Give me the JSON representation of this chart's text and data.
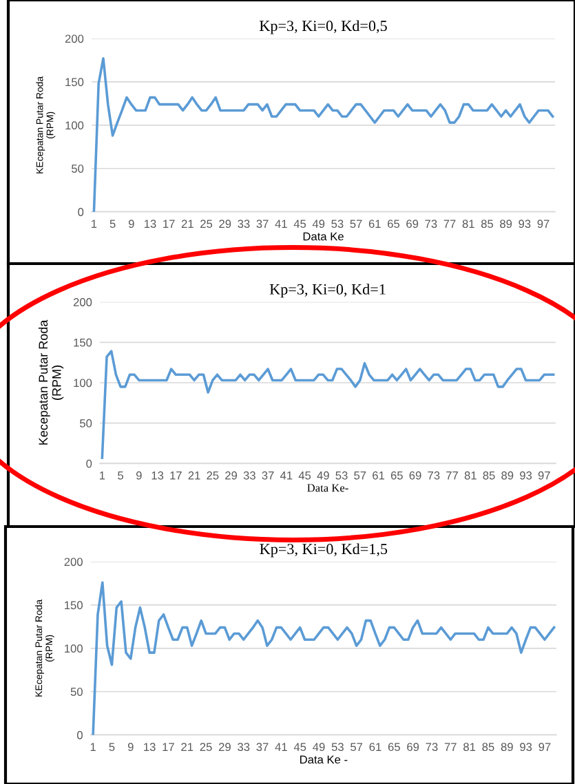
{
  "chart_data": [
    {
      "type": "line",
      "title": "Kp=3, Ki=0, Kd=0,5",
      "xlabel": "Data Ke",
      "ylabel": "KEcepatan Putar Roda\n(RPM)",
      "ylim": [
        0,
        200
      ],
      "yticks": [
        0,
        50,
        100,
        150,
        200
      ],
      "grid": "y",
      "line_style": "solid",
      "categories": [
        "1",
        null,
        null,
        null,
        "5",
        null,
        null,
        null,
        "9",
        null,
        null,
        null,
        "13",
        null,
        null,
        null,
        "17",
        null,
        null,
        null,
        "21",
        null,
        null,
        null,
        "25",
        null,
        null,
        null,
        "29",
        null,
        null,
        null,
        "33",
        null,
        null,
        null,
        "37",
        null,
        null,
        null,
        "41",
        null,
        null,
        null,
        "45",
        null,
        null,
        null,
        "49",
        null,
        null,
        null,
        "53",
        null,
        null,
        null,
        "57",
        null,
        null,
        null,
        "61",
        null,
        null,
        null,
        "65",
        null,
        null,
        null,
        "69",
        null,
        null,
        null,
        "73",
        null,
        null,
        null,
        "77",
        null,
        null,
        null,
        "81",
        null,
        null,
        null,
        "85",
        null,
        null,
        null,
        "89",
        null,
        null,
        null,
        "93",
        null,
        null,
        null,
        "97",
        null,
        null
      ],
      "series": [
        {
          "color": "#5b9bd5",
          "values": [
            0,
            148,
            177,
            124,
            88,
            103,
            117,
            132,
            124,
            117,
            117,
            117,
            132,
            132,
            124,
            124,
            124,
            124,
            124,
            117,
            124,
            132,
            124,
            117,
            117,
            124,
            132,
            117,
            117,
            117,
            117,
            117,
            117,
            124,
            124,
            124,
            117,
            124,
            110,
            110,
            117,
            124,
            124,
            124,
            117,
            117,
            117,
            117,
            110,
            117,
            124,
            117,
            117,
            110,
            110,
            117,
            124,
            124,
            117,
            110,
            103,
            110,
            117,
            117,
            117,
            110,
            117,
            124,
            117,
            117,
            117,
            117,
            110,
            117,
            124,
            117,
            103,
            103,
            110,
            124,
            124,
            117,
            117,
            117,
            117,
            124,
            117,
            110,
            117,
            110,
            117,
            124,
            110,
            103,
            110,
            117,
            117,
            117,
            110
          ]
        }
      ]
    },
    {
      "type": "line",
      "title": "Kp=3, Ki=0, Kd=1",
      "xlabel": "Data Ke-",
      "ylabel": "Kecepatan Putar Roda\n(RPM)",
      "ylim": [
        0,
        200
      ],
      "yticks": [
        0,
        50,
        100,
        150,
        200
      ],
      "grid": "y",
      "line_style": "solid",
      "categories": [
        "1",
        null,
        null,
        null,
        "5",
        null,
        null,
        null,
        "9",
        null,
        null,
        null,
        "13",
        null,
        null,
        null,
        "17",
        null,
        null,
        null,
        "21",
        null,
        null,
        null,
        "25",
        null,
        null,
        null,
        "29",
        null,
        null,
        null,
        "33",
        null,
        null,
        null,
        "37",
        null,
        null,
        null,
        "41",
        null,
        null,
        null,
        "45",
        null,
        null,
        null,
        "49",
        null,
        null,
        null,
        "53",
        null,
        null,
        null,
        "57",
        null,
        null,
        null,
        "61",
        null,
        null,
        null,
        "65",
        null,
        null,
        null,
        "69",
        null,
        null,
        null,
        "73",
        null,
        null,
        null,
        "77",
        null,
        null,
        null,
        "81",
        null,
        null,
        null,
        "85",
        null,
        null,
        null,
        "89",
        null,
        null,
        null,
        "93",
        null,
        null,
        null,
        "97",
        null,
        null
      ],
      "series": [
        {
          "color": "#5b9bd5",
          "values": [
            7,
            132,
            139,
            110,
            95,
            95,
            110,
            110,
            103,
            103,
            103,
            103,
            103,
            103,
            103,
            117,
            110,
            110,
            110,
            110,
            103,
            110,
            110,
            88,
            103,
            110,
            103,
            103,
            103,
            103,
            110,
            103,
            110,
            110,
            103,
            110,
            117,
            103,
            103,
            103,
            110,
            117,
            103,
            103,
            103,
            103,
            103,
            110,
            110,
            103,
            103,
            117,
            117,
            110,
            103,
            95,
            103,
            124,
            110,
            103,
            103,
            103,
            103,
            110,
            103,
            110,
            117,
            103,
            110,
            117,
            110,
            103,
            110,
            110,
            103,
            103,
            103,
            103,
            110,
            117,
            117,
            103,
            103,
            110,
            110,
            110,
            95,
            95,
            103,
            110,
            117,
            117,
            103,
            103,
            103,
            103,
            110,
            110,
            110
          ]
        }
      ]
    },
    {
      "type": "line",
      "title": "Kp=3, Ki=0, Kd=1,5",
      "xlabel": "Data Ke -",
      "ylabel": "KEcepatan Putar Roda\n(RPM)",
      "ylim": [
        0,
        200
      ],
      "yticks": [
        0,
        50,
        100,
        150,
        200
      ],
      "grid": "y",
      "line_style": "solid",
      "categories": [
        "1",
        null,
        null,
        null,
        "5",
        null,
        null,
        null,
        "9",
        null,
        null,
        null,
        "13",
        null,
        null,
        null,
        "17",
        null,
        null,
        null,
        "21",
        null,
        null,
        null,
        "25",
        null,
        null,
        null,
        "29",
        null,
        null,
        null,
        "33",
        null,
        null,
        null,
        "37",
        null,
        null,
        null,
        "41",
        null,
        null,
        null,
        "45",
        null,
        null,
        null,
        "49",
        null,
        null,
        null,
        "53",
        null,
        null,
        null,
        "57",
        null,
        null,
        null,
        "61",
        null,
        null,
        null,
        "65",
        null,
        null,
        null,
        "69",
        null,
        null,
        null,
        "73",
        null,
        null,
        null,
        "77",
        null,
        null,
        null,
        "81",
        null,
        null,
        null,
        "85",
        null,
        null,
        null,
        "89",
        null,
        null,
        null,
        "93",
        null,
        null,
        null,
        "97",
        null,
        null
      ],
      "series": [
        {
          "color": "#5b9bd5",
          "values": [
            0,
            139,
            176,
            103,
            81,
            147,
            154,
            95,
            88,
            124,
            147,
            124,
            95,
            95,
            132,
            139,
            124,
            110,
            110,
            124,
            124,
            103,
            117,
            132,
            117,
            117,
            117,
            124,
            124,
            110,
            117,
            117,
            110,
            117,
            124,
            132,
            124,
            103,
            110,
            124,
            124,
            117,
            110,
            117,
            124,
            110,
            110,
            110,
            117,
            124,
            124,
            117,
            110,
            117,
            124,
            117,
            103,
            110,
            132,
            132,
            117,
            103,
            110,
            124,
            124,
            117,
            110,
            110,
            124,
            132,
            117,
            117,
            117,
            117,
            124,
            117,
            110,
            117,
            117,
            117,
            117,
            117,
            110,
            110,
            124,
            117,
            117,
            117,
            117,
            124,
            117,
            95,
            110,
            124,
            124,
            117,
            110,
            117,
            124
          ]
        }
      ]
    }
  ]
}
